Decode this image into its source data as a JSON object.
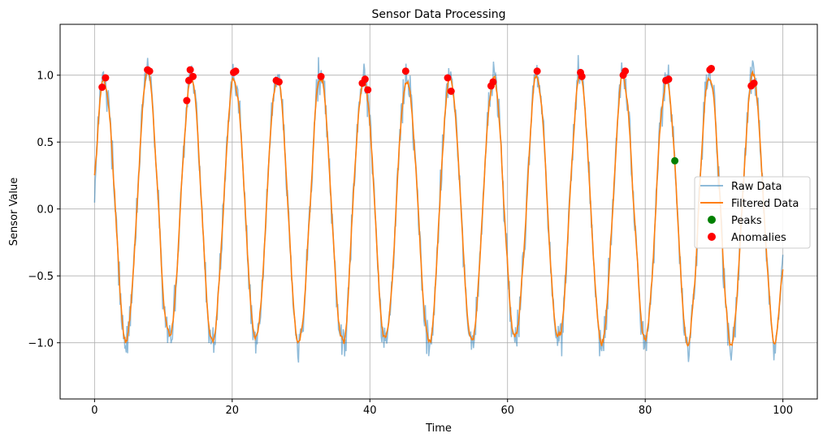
{
  "chart_data": {
    "type": "line",
    "title": "Sensor Data Processing",
    "xlabel": "Time",
    "ylabel": "Sensor Value",
    "xlim": [
      -5,
      105
    ],
    "ylim": [
      -1.42,
      1.38
    ],
    "xticks": [
      0,
      20,
      40,
      60,
      80,
      100
    ],
    "xtick_labels": [
      "0",
      "20",
      "40",
      "60",
      "80",
      "100"
    ],
    "yticks": [
      -1.0,
      -0.5,
      0.0,
      0.5,
      1.0
    ],
    "ytick_labels": [
      "−1.0",
      "−0.5",
      "0.0",
      "0.5",
      "1.0"
    ],
    "grid": true,
    "legend_position": "center-right",
    "signal": {
      "period": 6.28,
      "amplitude": 1.0,
      "x_range": [
        0,
        100
      ]
    },
    "series": [
      {
        "name": "Raw Data",
        "kind": "line",
        "color": "#1f77b4",
        "alpha": 0.5
      },
      {
        "name": "Filtered Data",
        "kind": "line",
        "color": "#ff7f0e"
      },
      {
        "name": "Peaks",
        "kind": "scatter",
        "color": "#008000",
        "points": [
          [
            84.3,
            0.36
          ]
        ]
      },
      {
        "name": "Anomalies",
        "kind": "scatter",
        "color": "#ff0000",
        "points": [
          [
            1.1,
            0.91
          ],
          [
            1.6,
            0.98
          ],
          [
            7.7,
            1.04
          ],
          [
            8.0,
            1.03
          ],
          [
            13.4,
            0.81
          ],
          [
            13.7,
            0.96
          ],
          [
            13.9,
            1.04
          ],
          [
            14.3,
            0.99
          ],
          [
            20.2,
            1.02
          ],
          [
            20.5,
            1.03
          ],
          [
            26.4,
            0.96
          ],
          [
            26.8,
            0.95
          ],
          [
            32.9,
            0.99
          ],
          [
            38.9,
            0.94
          ],
          [
            39.3,
            0.97
          ],
          [
            39.7,
            0.89
          ],
          [
            45.2,
            1.03
          ],
          [
            51.3,
            0.98
          ],
          [
            51.8,
            0.88
          ],
          [
            57.6,
            0.92
          ],
          [
            57.9,
            0.95
          ],
          [
            64.3,
            1.03
          ],
          [
            70.6,
            1.02
          ],
          [
            70.8,
            0.99
          ],
          [
            76.8,
            1.0
          ],
          [
            77.1,
            1.03
          ],
          [
            83.0,
            0.96
          ],
          [
            83.4,
            0.97
          ],
          [
            89.4,
            1.04
          ],
          [
            89.6,
            1.05
          ],
          [
            95.4,
            0.92
          ],
          [
            95.8,
            0.94
          ]
        ]
      }
    ]
  }
}
